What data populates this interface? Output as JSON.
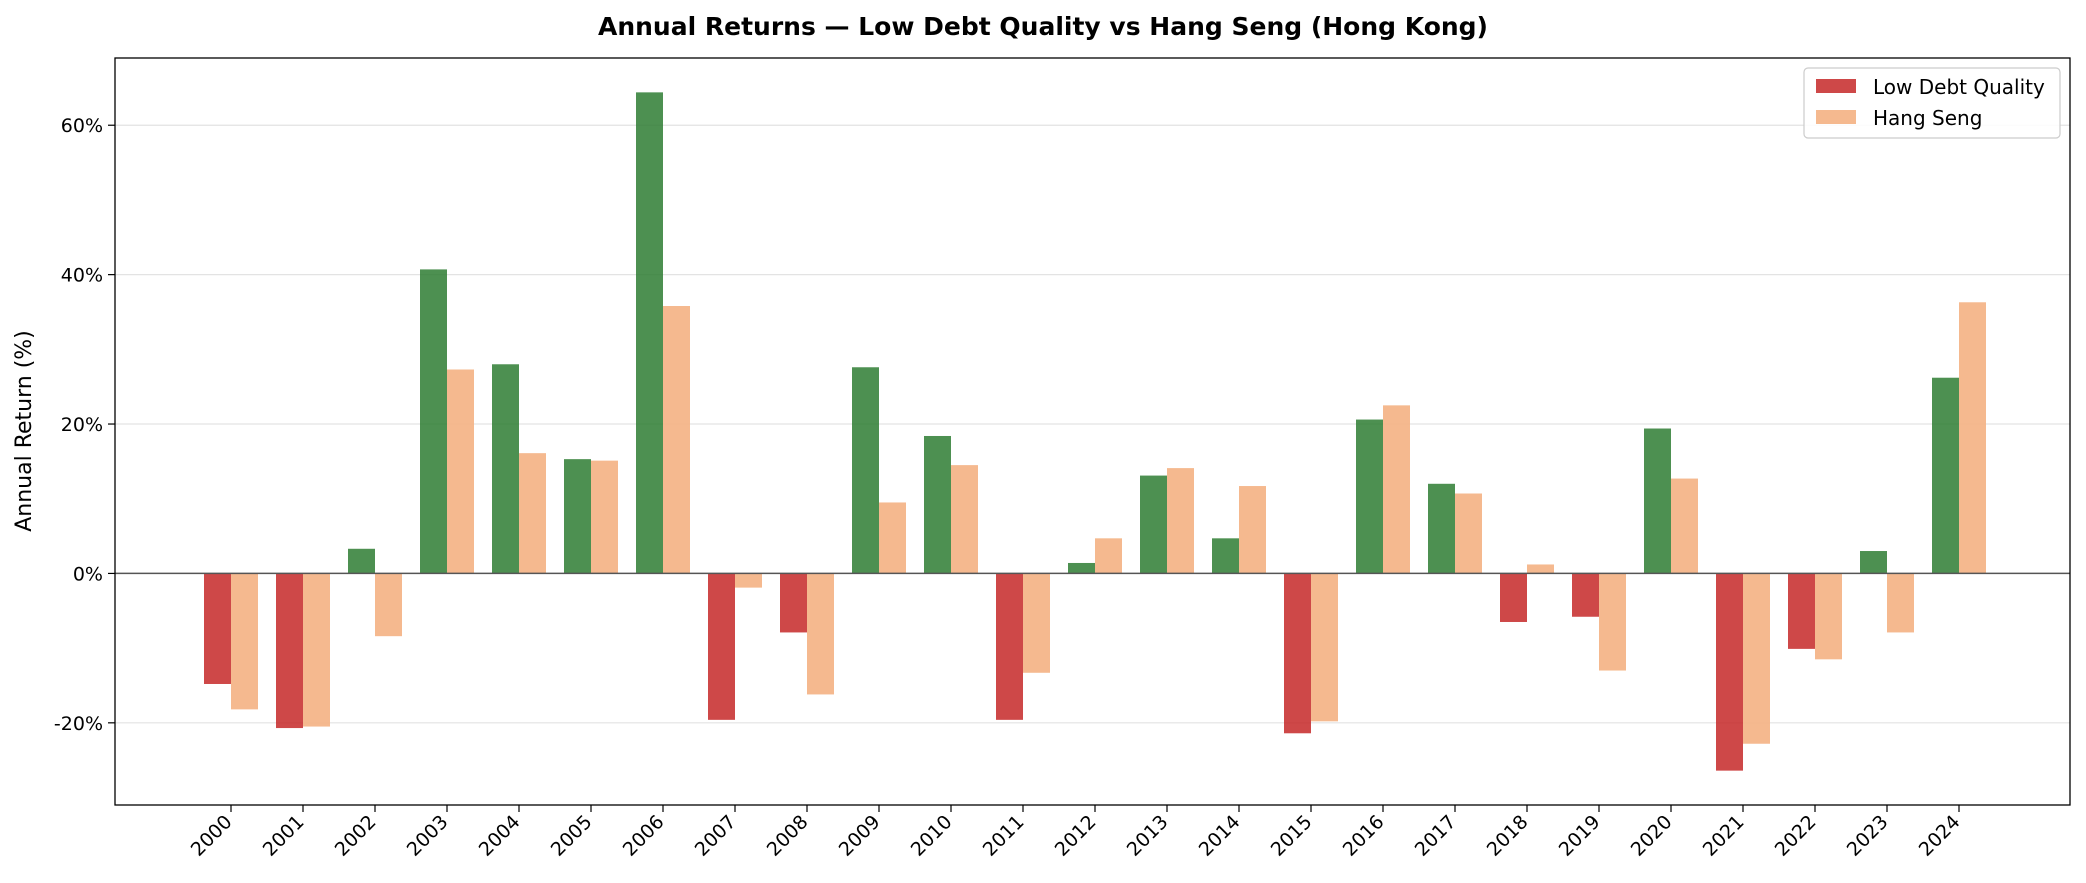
{
  "chart_data": {
    "type": "bar",
    "title": "Annual Returns — Low Debt Quality vs Hang Seng (Hong Kong)",
    "xlabel": "",
    "ylabel": "Annual Return (%)",
    "ylim": [
      -31,
      69
    ],
    "yticks": [
      -20,
      0,
      20,
      40,
      60
    ],
    "ytick_labels": [
      "-20%",
      "0%",
      "20%",
      "40%",
      "60%"
    ],
    "grid": "horizontal",
    "legend_position": "top-right",
    "categories": [
      "2000",
      "2001",
      "2002",
      "2003",
      "2004",
      "2005",
      "2006",
      "2007",
      "2008",
      "2009",
      "2010",
      "2011",
      "2012",
      "2013",
      "2014",
      "2015",
      "2016",
      "2017",
      "2018",
      "2019",
      "2020",
      "2021",
      "2022",
      "2023",
      "2024"
    ],
    "series": [
      {
        "name": "Low Debt Quality",
        "color": "#c62828",
        "positive_color": "#2e7d32",
        "negative_color": "#c62828",
        "values": [
          -14.8,
          -20.7,
          3.3,
          40.7,
          28.0,
          15.3,
          64.4,
          -19.6,
          -7.9,
          27.6,
          18.4,
          -19.6,
          1.4,
          13.1,
          4.7,
          -21.4,
          20.6,
          12.0,
          -6.5,
          -5.8,
          19.4,
          -26.4,
          -10.1,
          3.0,
          26.2
        ]
      },
      {
        "name": "Hang Seng",
        "color": "#f4b183",
        "values": [
          -18.2,
          -20.5,
          -8.4,
          27.3,
          16.1,
          15.1,
          35.8,
          -1.9,
          -16.2,
          9.5,
          14.5,
          -13.3,
          4.7,
          14.1,
          11.7,
          -19.8,
          22.5,
          10.7,
          1.2,
          -13.0,
          12.7,
          -22.8,
          -11.5,
          -7.9,
          36.3
        ]
      }
    ]
  }
}
